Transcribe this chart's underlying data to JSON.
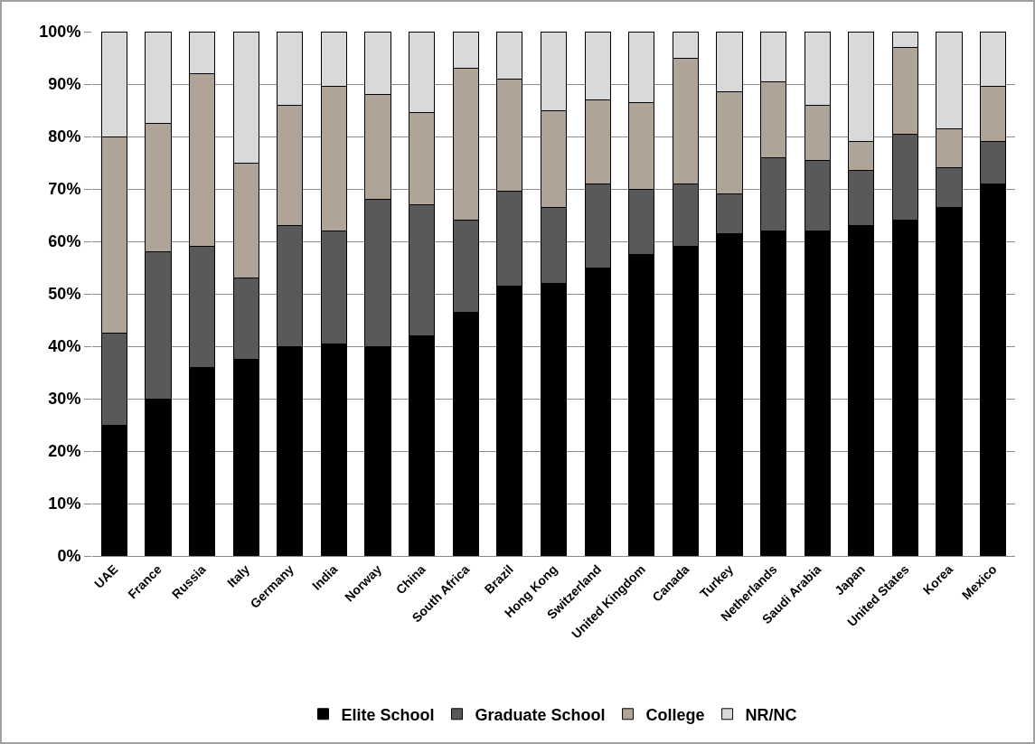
{
  "chart_data": {
    "type": "bar",
    "stacked": true,
    "categories": [
      "UAE",
      "France",
      "Russia",
      "Italy",
      "Germany",
      "India",
      "Norway",
      "China",
      "South Africa",
      "Brazil",
      "Hong Kong",
      "Switzerland",
      "United Kingdom",
      "Canada",
      "Turkey",
      "Netherlands",
      "Saudi Arabia",
      "Japan",
      "United States",
      "Korea",
      "Mexico"
    ],
    "series": [
      {
        "name": "Elite School",
        "color": "#000000",
        "values": [
          25,
          30,
          36,
          37.5,
          40,
          40.5,
          40,
          42,
          46.5,
          51.5,
          52,
          55,
          57.5,
          59,
          61.5,
          62,
          62,
          63,
          64,
          66.5,
          71
        ]
      },
      {
        "name": "Graduate School",
        "color": "#595959",
        "values": [
          17.5,
          28,
          23,
          15.5,
          23,
          21.5,
          28,
          25,
          17.5,
          18,
          14.5,
          16,
          12.5,
          12,
          7.5,
          14,
          13.5,
          10.5,
          16.5,
          7.5,
          8
        ]
      },
      {
        "name": "College",
        "color": "#b0a398",
        "values": [
          37.5,
          24.5,
          33,
          22,
          23,
          27.5,
          20,
          17.5,
          29,
          21.5,
          18.5,
          16,
          16.5,
          24,
          19.5,
          14.5,
          10.5,
          5.5,
          16.5,
          7.5,
          10.5
        ]
      },
      {
        "name": "NR/NC",
        "color": "#d9d9d9",
        "values": [
          20,
          17.5,
          8,
          25,
          14,
          10.5,
          12,
          15.5,
          7,
          9,
          15,
          13,
          13.5,
          5,
          11.5,
          9.5,
          14,
          21,
          3,
          18.5,
          10.5
        ]
      }
    ],
    "ylim": [
      0,
      100
    ],
    "yticks": [
      {
        "value": 0,
        "label": "0%"
      },
      {
        "value": 10,
        "label": "10%"
      },
      {
        "value": 20,
        "label": "20%"
      },
      {
        "value": 30,
        "label": "30%"
      },
      {
        "value": 40,
        "label": "40%"
      },
      {
        "value": 50,
        "label": "50%"
      },
      {
        "value": 60,
        "label": "60%"
      },
      {
        "value": 70,
        "label": "70%"
      },
      {
        "value": 80,
        "label": "80%"
      },
      {
        "value": 90,
        "label": "90%"
      },
      {
        "value": 100,
        "label": "100%"
      }
    ],
    "grid": "y",
    "legend": "bottom"
  }
}
